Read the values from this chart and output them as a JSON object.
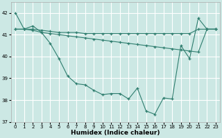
{
  "xlabel": "Humidex (Indice chaleur)",
  "background_color": "#cce8e4",
  "grid_color": "#ffffff",
  "line_color": "#2e7d6e",
  "xlim": [
    -0.5,
    23.5
  ],
  "ylim": [
    37,
    42.5
  ],
  "yticks": [
    37,
    38,
    39,
    40,
    41,
    42
  ],
  "xticks": [
    0,
    1,
    2,
    3,
    4,
    5,
    6,
    7,
    8,
    9,
    10,
    11,
    12,
    13,
    14,
    15,
    16,
    17,
    18,
    19,
    20,
    21,
    22,
    23
  ],
  "series1": [
    42.0,
    41.25,
    41.4,
    41.1,
    40.6,
    39.9,
    39.1,
    38.75,
    38.7,
    38.45,
    38.25,
    38.3,
    38.3,
    38.05,
    38.55,
    37.5,
    37.35,
    38.1,
    38.05,
    40.5,
    39.9,
    41.75,
    41.25,
    41.25
  ],
  "series2": [
    41.25,
    41.25,
    41.25,
    41.2,
    41.15,
    41.1,
    41.1,
    41.1,
    41.05,
    41.05,
    41.05,
    41.05,
    41.05,
    41.05,
    41.05,
    41.05,
    41.05,
    41.05,
    41.05,
    41.05,
    41.05,
    41.25,
    41.25,
    41.25
  ],
  "series3": [
    41.25,
    41.25,
    41.2,
    41.1,
    41.05,
    41.0,
    40.95,
    40.9,
    40.85,
    40.8,
    40.75,
    40.7,
    40.65,
    40.6,
    40.55,
    40.5,
    40.45,
    40.4,
    40.35,
    40.3,
    40.25,
    40.2,
    41.25,
    41.25
  ]
}
